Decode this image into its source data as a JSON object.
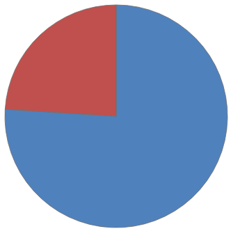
{
  "chart_data": {
    "type": "pie",
    "values": [
      76,
      24
    ],
    "colors": [
      "#4f81bd",
      "#c0504d"
    ],
    "data_labels": false
  }
}
